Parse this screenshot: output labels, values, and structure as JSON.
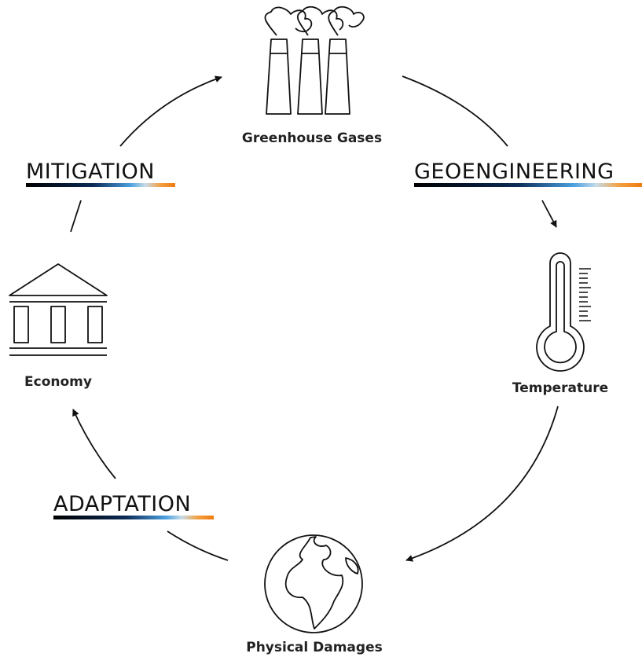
{
  "nodes": [
    {
      "label": "Greenhouse Gases"
    },
    {
      "label": "Temperature"
    },
    {
      "label": "Physical Damages"
    },
    {
      "label": "Economy"
    }
  ],
  "levers": [
    {
      "label": "MITIGATION"
    },
    {
      "label": "GEOENGINEERING"
    },
    {
      "label": "ADAPTATION"
    }
  ]
}
